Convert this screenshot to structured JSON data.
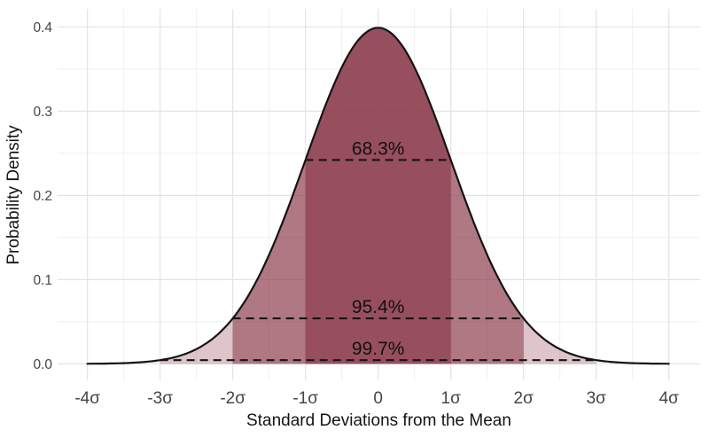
{
  "chart_data": {
    "type": "area",
    "title": "",
    "xlabel": "Standard Deviations from the Mean",
    "ylabel": "Probability Density",
    "x_ticks": [
      {
        "value": -4,
        "label": "-4σ"
      },
      {
        "value": -3,
        "label": "-3σ"
      },
      {
        "value": -2,
        "label": "-2σ"
      },
      {
        "value": -1,
        "label": "-1σ"
      },
      {
        "value": 0,
        "label": "0"
      },
      {
        "value": 1,
        "label": "1σ"
      },
      {
        "value": 2,
        "label": "2σ"
      },
      {
        "value": 3,
        "label": "3σ"
      },
      {
        "value": 4,
        "label": "4σ"
      }
    ],
    "y_ticks": [
      {
        "value": 0.0,
        "label": "0.0"
      },
      {
        "value": 0.1,
        "label": "0.1"
      },
      {
        "value": 0.2,
        "label": "0.2"
      },
      {
        "value": 0.3,
        "label": "0.3"
      },
      {
        "value": 0.4,
        "label": "0.4"
      }
    ],
    "xlim": [
      -4.41,
      4.43
    ],
    "ylim": [
      -0.0196,
      0.4214
    ],
    "grid": {
      "x_major": [
        -4,
        -3,
        -2,
        -1,
        0,
        1,
        2,
        3,
        4
      ],
      "x_minor": [
        -3.5,
        -2.5,
        -1.5,
        -0.5,
        0.5,
        1.5,
        2.5,
        3.5
      ],
      "y_major": [
        0.0,
        0.1,
        0.2,
        0.3,
        0.4
      ],
      "y_minor": [
        0.05,
        0.15,
        0.25,
        0.35
      ]
    },
    "curve": {
      "distribution": "normal",
      "mean": 0,
      "sd": 1,
      "x_range": [
        -4,
        4
      ],
      "peak_density": 0.3989
    },
    "key_densities": {
      "at_0sigma": 0.3989,
      "at_1sigma": 0.242,
      "at_2sigma": 0.054,
      "at_3sigma": 0.0044
    },
    "bands": [
      {
        "sigma_range": [
          -1,
          1
        ],
        "coverage_label": "68.3%",
        "dash_at_density": 0.242,
        "fill_alpha": 0.72
      },
      {
        "sigma_range": [
          -2,
          2
        ],
        "coverage_label": "95.4%",
        "dash_at_density": 0.054,
        "fill_alpha": 0.58
      },
      {
        "sigma_range": [
          -3,
          3
        ],
        "coverage_label": "99.7%",
        "dash_at_density": 0.0044,
        "fill_alpha": 0.3
      }
    ],
    "style": {
      "band_base_color": "#8d4050",
      "curve_color": "#141414",
      "dash_color": "#141414",
      "annotation_color": "#111111",
      "tick_label_color": "#454545",
      "grid_major_color": "#e3e3e3",
      "grid_minor_color": "#efefef",
      "background_color": "#ffffff"
    }
  }
}
